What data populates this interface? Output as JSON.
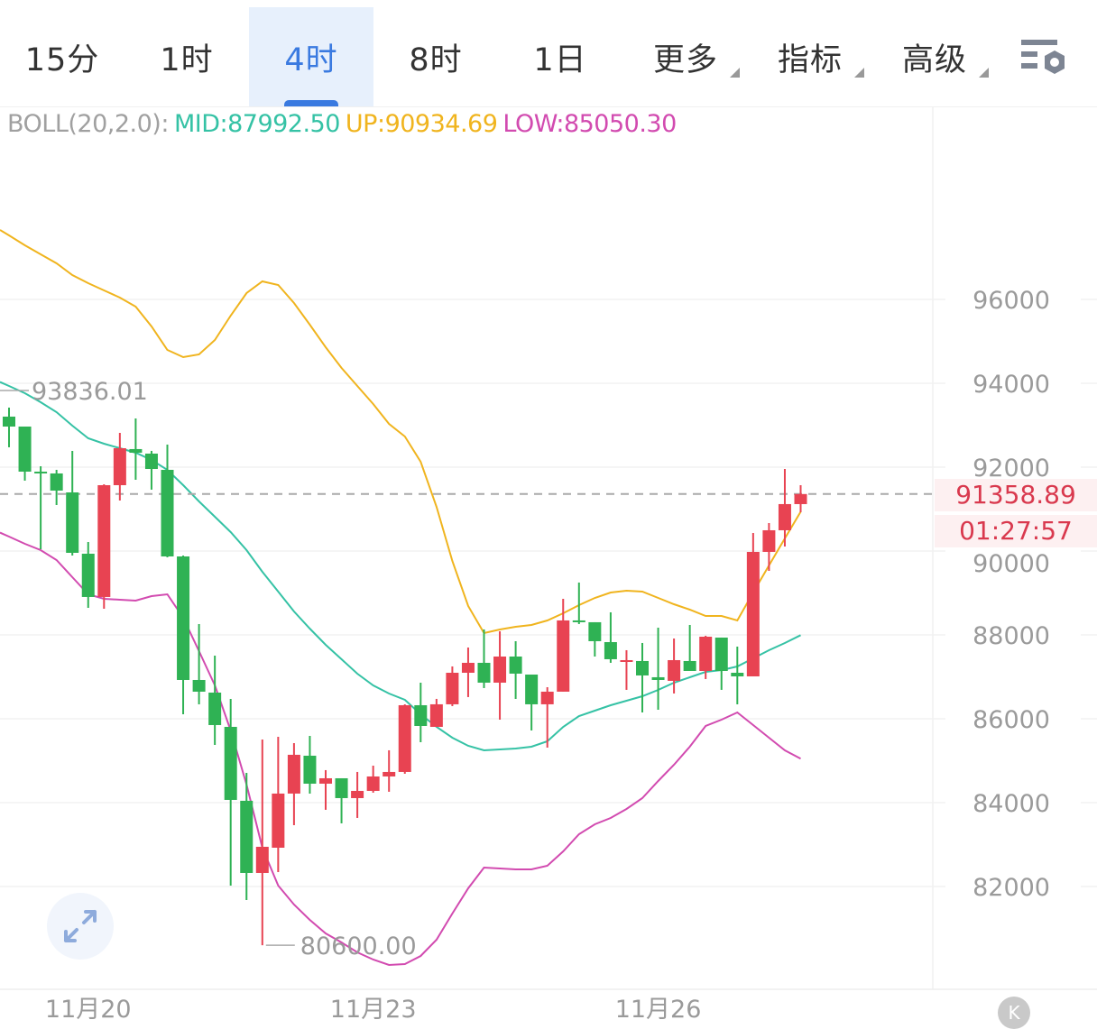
{
  "tabs": [
    {
      "label": "15分",
      "active": false
    },
    {
      "label": "1时",
      "active": false
    },
    {
      "label": "4时",
      "active": true
    },
    {
      "label": "8时",
      "active": false
    },
    {
      "label": "1日",
      "active": false
    },
    {
      "label": "更多",
      "dropdown": true
    },
    {
      "label": "指标",
      "dropdown": true
    },
    {
      "label": "高级",
      "dropdown": true
    }
  ],
  "settings_icon": "chart-settings-icon",
  "indicator": {
    "name": "BOLL(20,2.0):",
    "mid": "MID:87992.50",
    "up": "UP:90934.69",
    "low": "LOW:85050.30"
  },
  "colors": {
    "up_candle": "#e84352",
    "down_candle": "#2fb254",
    "mid": "#35c2a5",
    "up_band": "#f0b41e",
    "low_band": "#d24bb0",
    "accent": "#3a7ae0"
  },
  "current_price": "91358.89",
  "countdown": "01:27:57",
  "expand_icon": "expand-arrows-icon",
  "scroll_latest_icon": "scroll-to-latest-icon",
  "scroll_latest_label": "K",
  "chart_data": {
    "type": "candlestick",
    "interval": "4时",
    "y_ticks": [
      "96000",
      "94000",
      "92000",
      "90000",
      "88000",
      "86000",
      "84000",
      "82000"
    ],
    "ylim": [
      79900,
      100300
    ],
    "x_ticks": [
      {
        "index": 5,
        "label": "11月20"
      },
      {
        "index": 23,
        "label": "11月23"
      },
      {
        "index": 41,
        "label": "11月26"
      }
    ],
    "high_marker": {
      "value": 93836.01,
      "label": "93836.01"
    },
    "low_marker": {
      "index": 16,
      "value": 80600.0,
      "label": "80600.00"
    },
    "grid": true,
    "candles": [
      [
        93205,
        93420,
        92474,
        92968
      ],
      [
        92968,
        92968,
        91678,
        91893
      ],
      [
        91893,
        92022,
        90043,
        91870
      ],
      [
        91850,
        91936,
        91097,
        91441
      ],
      [
        91398,
        92388,
        89893,
        89957
      ],
      [
        89936,
        90215,
        88646,
        88904
      ],
      [
        88904,
        91592,
        88624,
        91570
      ],
      [
        91570,
        92818,
        91205,
        92452
      ],
      [
        92431,
        93162,
        91699,
        92344
      ],
      [
        92323,
        92388,
        91463,
        91957
      ],
      [
        91936,
        92538,
        89850,
        89871
      ],
      [
        89871,
        89893,
        86108,
        86925
      ],
      [
        86925,
        88259,
        86345,
        86646
      ],
      [
        86624,
        87506,
        85377,
        85850
      ],
      [
        85807,
        86474,
        82022,
        84065
      ],
      [
        84044,
        84710,
        81678,
        82323
      ],
      [
        82323,
        85506,
        80600,
        82947
      ],
      [
        82925,
        85570,
        82345,
        84216
      ],
      [
        84216,
        85420,
        83463,
        85141
      ],
      [
        85119,
        85592,
        84216,
        84452
      ],
      [
        84452,
        84775,
        83829,
        84581
      ],
      [
        84581,
        84581,
        83506,
        84108
      ],
      [
        84108,
        84732,
        83635,
        84280
      ],
      [
        84280,
        84882,
        84237,
        84624
      ],
      [
        84624,
        85248,
        84259,
        84732
      ],
      [
        84732,
        86345,
        84689,
        86323
      ],
      [
        86323,
        86861,
        85441,
        85828
      ],
      [
        85807,
        86474,
        85807,
        86345
      ],
      [
        86345,
        87248,
        86302,
        87097
      ],
      [
        87097,
        87699,
        86517,
        87334
      ],
      [
        87334,
        88130,
        86732,
        86861
      ],
      [
        86861,
        88086,
        85979,
        87484
      ],
      [
        87484,
        87850,
        86474,
        87076
      ],
      [
        87054,
        87054,
        85721,
        86345
      ],
      [
        86345,
        86753,
        85312,
        86646
      ],
      [
        86646,
        88861,
        86646,
        88345
      ],
      [
        88345,
        89248,
        88259,
        88302
      ],
      [
        88302,
        88302,
        87484,
        87850
      ],
      [
        87828,
        88538,
        87334,
        87420
      ],
      [
        87398,
        87635,
        86689,
        87398
      ],
      [
        87377,
        87807,
        86151,
        87033
      ],
      [
        86990,
        88173,
        86216,
        86925
      ],
      [
        86904,
        87914,
        86603,
        87398
      ],
      [
        87377,
        88237,
        87140,
        87140
      ],
      [
        87140,
        87979,
        86947,
        87957
      ],
      [
        87936,
        87936,
        86689,
        87140
      ],
      [
        87097,
        87721,
        86345,
        87011
      ],
      [
        87011,
        90431,
        87011,
        89979
      ],
      [
        89979,
        90667,
        89527,
        90495
      ],
      [
        90495,
        91957,
        90108,
        91119
      ],
      [
        91119,
        91570,
        90925,
        91358.89
      ]
    ],
    "candle_fields": [
      "open",
      "high",
      "low",
      "close"
    ],
    "boll": {
      "up": [
        97527,
        97291,
        97076,
        96861,
        96581,
        96387,
        96215,
        96043,
        95828,
        95355,
        94796,
        94624,
        94689,
        95033,
        95613,
        96151,
        96430,
        96344,
        95914,
        95398,
        94861,
        94366,
        93936,
        93506,
        93033,
        92732,
        92129,
        91054,
        89764,
        88689,
        88043,
        88130,
        88194,
        88237,
        88345,
        88517,
        88710,
        88882,
        89011,
        89054,
        89033,
        88882,
        88732,
        88603,
        88452,
        88452,
        88345,
        89011,
        89656,
        90302,
        90934.69
      ],
      "mid": [
        93936,
        93764,
        93549,
        93312,
        92990,
        92689,
        92560,
        92452,
        92344,
        92172,
        91936,
        91570,
        91183,
        90818,
        90452,
        90022,
        89506,
        89033,
        88560,
        88151,
        87764,
        87420,
        87076,
        86796,
        86603,
        86452,
        86108,
        85807,
        85549,
        85355,
        85248,
        85269,
        85291,
        85334,
        85463,
        85807,
        86065,
        86194,
        86323,
        86431,
        86538,
        86689,
        86861,
        86990,
        87119,
        87162,
        87248,
        87441,
        87635,
        87807,
        87992.5
      ],
      "low": [
        90345,
        90173,
        90022,
        89785,
        89377,
        88968,
        88861,
        88839,
        88818,
        88925,
        88968,
        88409,
        87613,
        86796,
        85721,
        84431,
        82925,
        82022,
        81570,
        81205,
        80882,
        80667,
        80431,
        80259,
        80130,
        80151,
        80345,
        80732,
        81355,
        81958,
        82452,
        82431,
        82409,
        82409,
        82495,
        82839,
        83248,
        83484,
        83635,
        83850,
        84108,
        84517,
        84904,
        85334,
        85828,
        85979,
        86151,
        85850,
        85549,
        85248,
        85050.3
      ]
    }
  }
}
